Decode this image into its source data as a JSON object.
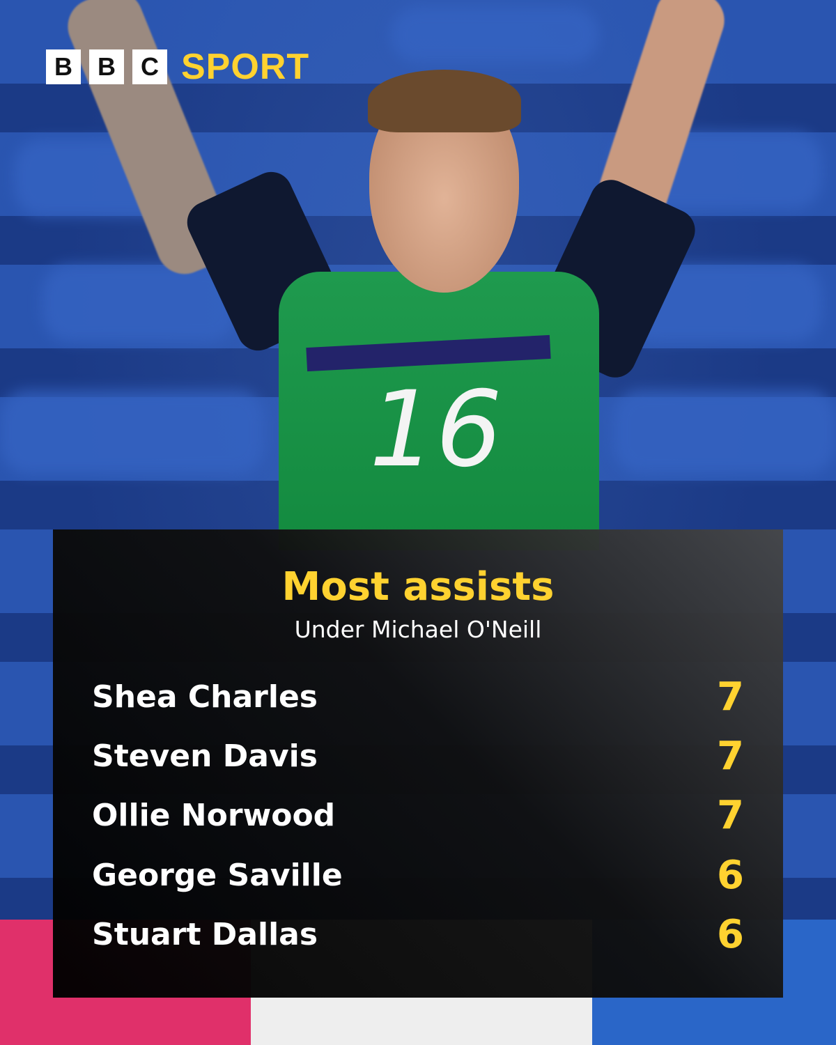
{
  "brand": {
    "logo_letters": [
      "B",
      "B",
      "C"
    ],
    "sport_label": "SPORT",
    "accent_color": "#ffd230"
  },
  "photo": {
    "shirt_number": "16"
  },
  "panel": {
    "title": "Most assists",
    "subtitle": "Under Michael O'Neill",
    "rows": [
      {
        "name": "Shea Charles",
        "value": "7"
      },
      {
        "name": "Steven Davis",
        "value": "7"
      },
      {
        "name": "Ollie Norwood",
        "value": "7"
      },
      {
        "name": "George Saville",
        "value": "6"
      },
      {
        "name": "Stuart Dallas",
        "value": "6"
      }
    ]
  }
}
